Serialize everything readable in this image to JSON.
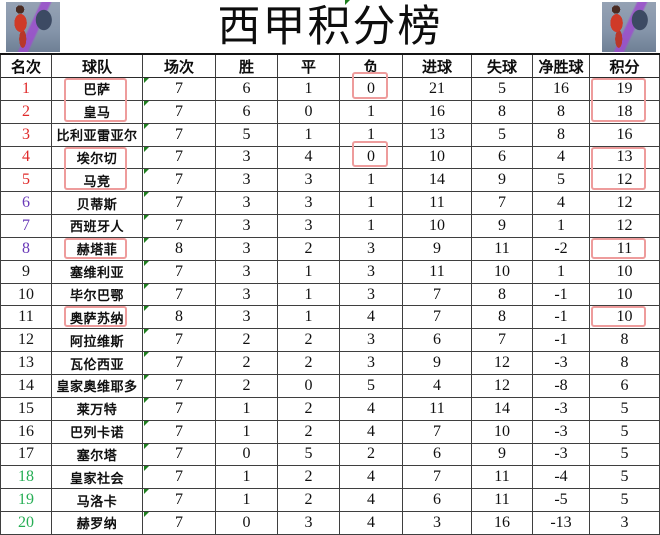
{
  "title": "西甲积分榜",
  "colors": {
    "rank_top5": "#e02a2a",
    "rank_european": "#6a3ab8",
    "rank_mid": "#161616",
    "rank_relegation": "#27ae55",
    "highlight_box": "#ee9c9c",
    "error_flag_green": "#1e7e1e"
  },
  "table": {
    "columns": [
      "名次",
      "球队",
      "场次",
      "胜",
      "平",
      "负",
      "进球",
      "失球",
      "净胜球",
      "积分"
    ],
    "rows": [
      {
        "rank": "1",
        "team": "巴萨",
        "played": "7",
        "won": "6",
        "drawn": "1",
        "lost": "0",
        "gf": "21",
        "ga": "5",
        "gd": "16",
        "pts": "19",
        "rank_color": "top",
        "boxes": {
          "team": "top",
          "lost": "tall",
          "pts": "top"
        }
      },
      {
        "rank": "2",
        "team": "皇马",
        "played": "7",
        "won": "6",
        "drawn": "0",
        "lost": "1",
        "gf": "16",
        "ga": "8",
        "gd": "8",
        "pts": "18",
        "rank_color": "top",
        "boxes": {
          "team": "bottom",
          "pts": "bottom"
        }
      },
      {
        "rank": "3",
        "team": "比利亚雷亚尔",
        "played": "7",
        "won": "5",
        "drawn": "1",
        "lost": "1",
        "gf": "13",
        "ga": "5",
        "gd": "8",
        "pts": "16",
        "rank_color": "top",
        "boxes": {}
      },
      {
        "rank": "4",
        "team": "埃尔切",
        "played": "7",
        "won": "3",
        "drawn": "4",
        "lost": "0",
        "gf": "10",
        "ga": "6",
        "gd": "4",
        "pts": "13",
        "rank_color": "top",
        "boxes": {
          "team": "top",
          "lost": "tall",
          "pts": "top"
        }
      },
      {
        "rank": "5",
        "team": "马竞",
        "played": "7",
        "won": "3",
        "drawn": "3",
        "lost": "1",
        "gf": "14",
        "ga": "9",
        "gd": "5",
        "pts": "12",
        "rank_color": "top",
        "boxes": {
          "team": "bottom",
          "pts": "bottom"
        }
      },
      {
        "rank": "6",
        "team": "贝蒂斯",
        "played": "7",
        "won": "3",
        "drawn": "3",
        "lost": "1",
        "gf": "11",
        "ga": "7",
        "gd": "4",
        "pts": "12",
        "rank_color": "euro",
        "boxes": {}
      },
      {
        "rank": "7",
        "team": "西班牙人",
        "played": "7",
        "won": "3",
        "drawn": "3",
        "lost": "1",
        "gf": "10",
        "ga": "9",
        "gd": "1",
        "pts": "12",
        "rank_color": "euro",
        "boxes": {}
      },
      {
        "rank": "8",
        "team": "赫塔菲",
        "played": "8",
        "won": "3",
        "drawn": "2",
        "lost": "3",
        "gf": "9",
        "ga": "11",
        "gd": "-2",
        "pts": "11",
        "rank_color": "euro",
        "boxes": {
          "team": "full",
          "pts": "full"
        }
      },
      {
        "rank": "9",
        "team": "塞维利亚",
        "played": "7",
        "won": "3",
        "drawn": "1",
        "lost": "3",
        "gf": "11",
        "ga": "10",
        "gd": "1",
        "pts": "10",
        "rank_color": "mid",
        "boxes": {}
      },
      {
        "rank": "10",
        "team": "毕尔巴鄂",
        "played": "7",
        "won": "3",
        "drawn": "1",
        "lost": "3",
        "gf": "7",
        "ga": "8",
        "gd": "-1",
        "pts": "10",
        "rank_color": "mid",
        "boxes": {}
      },
      {
        "rank": "11",
        "team": "奥萨苏纳",
        "played": "8",
        "won": "3",
        "drawn": "1",
        "lost": "4",
        "gf": "7",
        "ga": "8",
        "gd": "-1",
        "pts": "10",
        "rank_color": "mid",
        "boxes": {
          "team": "full",
          "pts": "full"
        }
      },
      {
        "rank": "12",
        "team": "阿拉维斯",
        "played": "7",
        "won": "2",
        "drawn": "2",
        "lost": "3",
        "gf": "6",
        "ga": "7",
        "gd": "-1",
        "pts": "8",
        "rank_color": "mid",
        "boxes": {}
      },
      {
        "rank": "13",
        "team": "瓦伦西亚",
        "played": "7",
        "won": "2",
        "drawn": "2",
        "lost": "3",
        "gf": "9",
        "ga": "12",
        "gd": "-3",
        "pts": "8",
        "rank_color": "mid",
        "boxes": {}
      },
      {
        "rank": "14",
        "team": "皇家奥维耶多",
        "played": "7",
        "won": "2",
        "drawn": "0",
        "lost": "5",
        "gf": "4",
        "ga": "12",
        "gd": "-8",
        "pts": "6",
        "rank_color": "mid",
        "boxes": {}
      },
      {
        "rank": "15",
        "team": "莱万特",
        "played": "7",
        "won": "1",
        "drawn": "2",
        "lost": "4",
        "gf": "11",
        "ga": "14",
        "gd": "-3",
        "pts": "5",
        "rank_color": "mid",
        "boxes": {}
      },
      {
        "rank": "16",
        "team": "巴列卡诺",
        "played": "7",
        "won": "1",
        "drawn": "2",
        "lost": "4",
        "gf": "7",
        "ga": "10",
        "gd": "-3",
        "pts": "5",
        "rank_color": "mid",
        "boxes": {}
      },
      {
        "rank": "17",
        "team": "塞尔塔",
        "played": "7",
        "won": "0",
        "drawn": "5",
        "lost": "2",
        "gf": "6",
        "ga": "9",
        "gd": "-3",
        "pts": "5",
        "rank_color": "mid",
        "boxes": {}
      },
      {
        "rank": "18",
        "team": "皇家社会",
        "played": "7",
        "won": "1",
        "drawn": "2",
        "lost": "4",
        "gf": "7",
        "ga": "11",
        "gd": "-4",
        "pts": "5",
        "rank_color": "rel",
        "boxes": {}
      },
      {
        "rank": "19",
        "team": "马洛卡",
        "played": "7",
        "won": "1",
        "drawn": "2",
        "lost": "4",
        "gf": "6",
        "ga": "11",
        "gd": "-5",
        "pts": "5",
        "rank_color": "rel",
        "boxes": {}
      },
      {
        "rank": "20",
        "team": "赫罗纳",
        "played": "7",
        "won": "0",
        "drawn": "3",
        "lost": "4",
        "gf": "3",
        "ga": "16",
        "gd": "-13",
        "pts": "3",
        "rank_color": "rel",
        "boxes": {}
      }
    ]
  }
}
